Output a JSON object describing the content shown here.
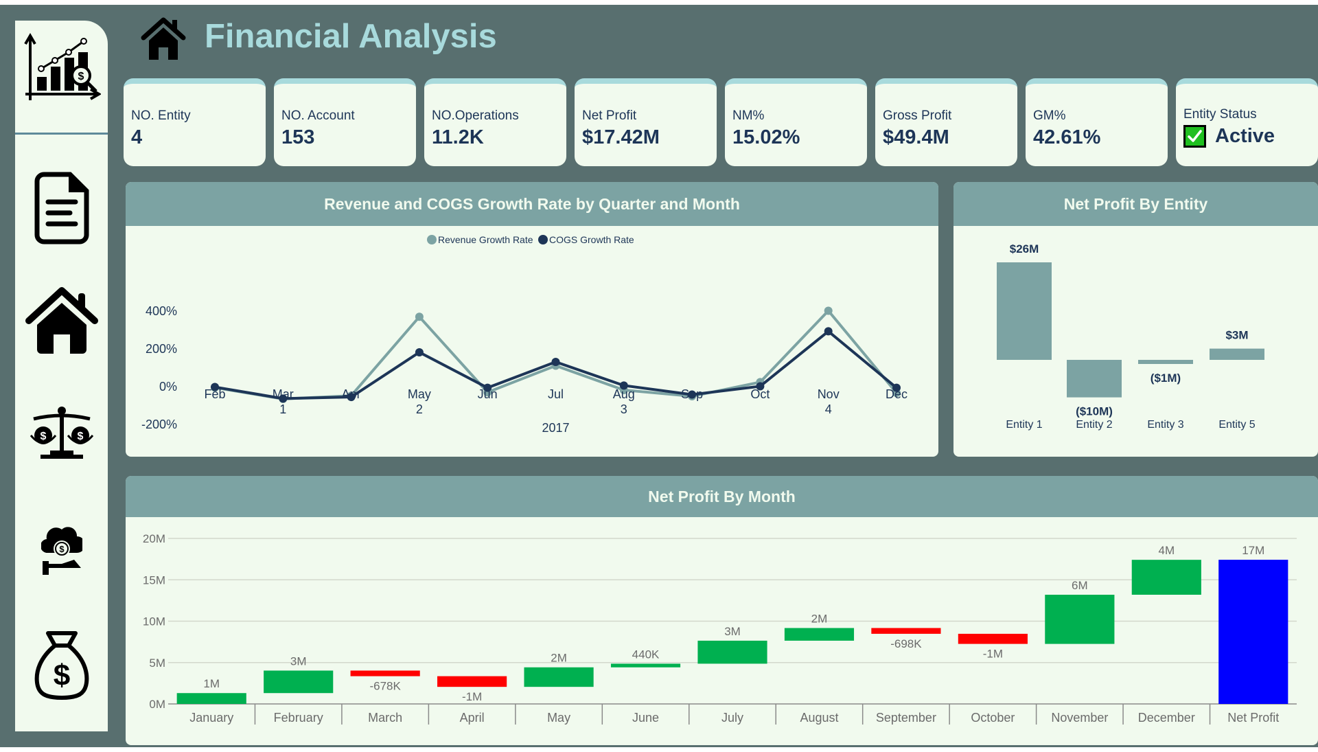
{
  "header": {
    "title": "Financial Analysis",
    "home_icon": "home-icon"
  },
  "sidebar": {
    "logo_icon": "financial-chart-magnifier-icon",
    "items": [
      {
        "name": "document",
        "icon": "document-icon"
      },
      {
        "name": "home",
        "icon": "home-icon"
      },
      {
        "name": "balance",
        "icon": "money-scale-icon"
      },
      {
        "name": "cloud-finance",
        "icon": "cloud-money-hand-icon"
      },
      {
        "name": "money-bag",
        "icon": "money-bag-icon"
      }
    ]
  },
  "kpis": [
    {
      "label": "NO. Entity",
      "value": "4"
    },
    {
      "label": "NO. Account",
      "value": "153"
    },
    {
      "label": "NO.Operations",
      "value": "11.2K"
    },
    {
      "label": "Net Profit",
      "value": "$17.42M"
    },
    {
      "label": "NM%",
      "value": "15.02%"
    },
    {
      "label": "Gross Profit",
      "value": "$49.4M"
    },
    {
      "label": "GM%",
      "value": "42.61%"
    },
    {
      "label": "Entity Status",
      "value": "Active",
      "icon": "green-checkbox-icon"
    }
  ],
  "colors": {
    "background": "#586f6f",
    "card": "#f1faee",
    "accent": "#a8dadc",
    "panel_header": "#7ca3a3",
    "text_dark": "#1d3557",
    "revenue_line": "#7ca3a3",
    "cogs_line": "#1d3557",
    "increase": "#00b050",
    "decrease": "#ff0000",
    "total": "#0000ff"
  },
  "chart_data": [
    {
      "type": "line",
      "title": "Revenue and COGS Growth Rate by Quarter and Month",
      "x": [
        "Feb",
        "Mar",
        "Apr",
        "May",
        "Jun",
        "Jul",
        "Aug",
        "Sep",
        "Oct",
        "Nov",
        "Dec"
      ],
      "quarters": [
        {
          "label": "1",
          "at": "Feb-Apr"
        },
        {
          "label": "2",
          "at": "May"
        },
        {
          "label": "3",
          "at": "Aug"
        },
        {
          "label": "4",
          "at": "Nov"
        }
      ],
      "year_label": "2017",
      "series": [
        {
          "name": "Revenue Growth Rate",
          "values": [
            -5,
            -65,
            -48,
            370,
            -30,
            111,
            -18,
            -51,
            24,
            402,
            -33
          ]
        },
        {
          "name": "COGS Growth Rate",
          "values": [
            -2,
            -63,
            -55,
            182,
            -6,
            131,
            6,
            -42,
            2,
            293,
            -6
          ]
        }
      ],
      "yticks": [
        "400%",
        "200%",
        "0%",
        "-200%"
      ],
      "ylim": [
        -200,
        400
      ],
      "legend": "top-center",
      "xlabel": "",
      "ylabel": ""
    },
    {
      "type": "bar",
      "title": "Net Profit By Entity",
      "categories": [
        "Entity 1",
        "Entity 2",
        "Entity 3",
        "Entity 5"
      ],
      "values": [
        26,
        -10,
        -1,
        3
      ],
      "data_labels": [
        "$26M",
        "($10M)",
        "($1M)",
        "$3M"
      ],
      "unit": "M$"
    },
    {
      "type": "bar",
      "subtype": "waterfall",
      "title": "Net Profit By Month",
      "categories": [
        "January",
        "February",
        "March",
        "April",
        "May",
        "June",
        "July",
        "August",
        "September",
        "October",
        "November",
        "December",
        "Net Profit"
      ],
      "values": [
        1.31,
        2.72,
        -0.678,
        -1.29,
        2.36,
        0.44,
        2.78,
        1.53,
        -0.698,
        -1.22,
        5.94,
        4.22,
        17.42
      ],
      "data_labels": [
        "1M",
        "3M",
        "-678K",
        "-1M",
        "2M",
        "440K",
        "3M",
        "2M",
        "-698K",
        "-1M",
        "6M",
        "4M",
        "17M"
      ],
      "yticks": [
        "0M",
        "5M",
        "10M",
        "15M",
        "20M"
      ],
      "ylim": [
        0,
        20
      ],
      "grid": true
    }
  ]
}
